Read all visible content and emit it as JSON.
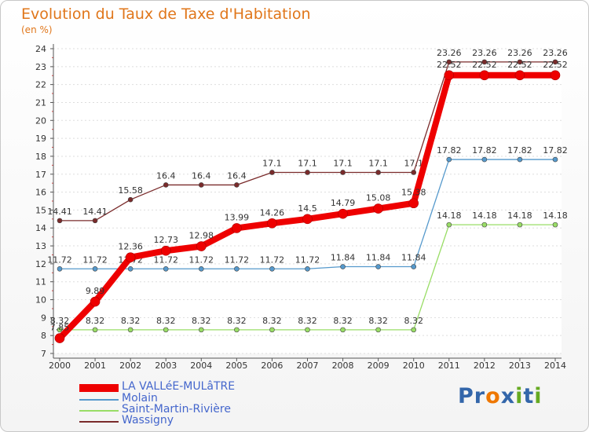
{
  "chart_data": {
    "type": "line",
    "title": "Evolution du Taux de Taxe d'Habitation",
    "subtitle": "(en %)",
    "x": [
      "2000",
      "2001",
      "2002",
      "2003",
      "2004",
      "2005",
      "2006",
      "2007",
      "2008",
      "2009",
      "2010",
      "2011",
      "2012",
      "2013",
      "2014"
    ],
    "yticks": [
      "7",
      "8",
      "9",
      "10",
      "11",
      "12",
      "13",
      "14",
      "15",
      "16",
      "17",
      "18",
      "19",
      "20",
      "21",
      "22",
      "23",
      "24"
    ],
    "ylim": [
      7,
      24
    ],
    "series": [
      {
        "name": "Wassigny",
        "color": "#7a2b2b",
        "values": [
          14.41,
          14.41,
          15.58,
          16.4,
          16.4,
          16.4,
          17.1,
          17.1,
          17.1,
          17.1,
          17.1,
          23.26,
          23.26,
          23.26,
          23.26
        ],
        "labels": [
          "14.41",
          "14.41",
          "15.58",
          "16.4",
          "16.4",
          "16.4",
          "17.1",
          "17.1",
          "17.1",
          "17.1",
          "17.1",
          "23.26",
          "23.26",
          "23.26",
          "23.26"
        ]
      },
      {
        "name": "Saint-Martin-Rivière",
        "color": "#99dd66",
        "values": [
          8.32,
          8.32,
          8.32,
          8.32,
          8.32,
          8.32,
          8.32,
          8.32,
          8.32,
          8.32,
          8.32,
          14.18,
          14.18,
          14.18,
          14.18
        ],
        "labels": [
          "8.32",
          "8.32",
          "8.32",
          "8.32",
          "8.32",
          "8.32",
          "8.32",
          "8.32",
          "8.32",
          "8.32",
          "8.32",
          "14.18",
          "14.18",
          "14.18",
          "14.18"
        ]
      },
      {
        "name": "Molain",
        "color": "#5599cc",
        "values": [
          11.72,
          11.72,
          11.72,
          11.72,
          11.72,
          11.72,
          11.72,
          11.72,
          11.84,
          11.84,
          11.84,
          17.82,
          17.82,
          17.82,
          17.82
        ],
        "labels": [
          "11.72",
          "11.72",
          "11.72",
          "11.72",
          "11.72",
          "11.72",
          "11.72",
          "11.72",
          "11.84",
          "11.84",
          "11.84",
          "17.82",
          "17.82",
          "17.82",
          "17.82"
        ]
      },
      {
        "name": "LA VALLéE-MULâTRE",
        "color": "#ee0000",
        "values": [
          7.85,
          9.89,
          12.36,
          12.73,
          12.98,
          13.99,
          14.26,
          14.5,
          14.79,
          15.08,
          15.38,
          22.52,
          22.52,
          22.52,
          22.52
        ],
        "labels": [
          "7.85",
          "9.89",
          "12.36",
          "12.73",
          "12.98",
          "13.99",
          "14.26",
          "14.5",
          "14.79",
          "15.08",
          "15.38",
          "22.52",
          "22.52",
          "22.52",
          "22.52"
        ]
      }
    ],
    "legend": [
      "LA VALLéE-MULâTRE",
      "Molain",
      "Saint-Martin-Rivière",
      "Wassigny"
    ]
  },
  "legend_colors": [
    "#ee0000",
    "#5599cc",
    "#99dd66",
    "#7a2b2b"
  ],
  "logo": {
    "letters": [
      "P",
      "r",
      "o",
      "x",
      "i",
      "t",
      "i"
    ],
    "colors": [
      "#3366aa",
      "#3366aa",
      "#ee7700",
      "#3366aa",
      "#66aa22",
      "#3366aa",
      "#66aa22"
    ]
  }
}
